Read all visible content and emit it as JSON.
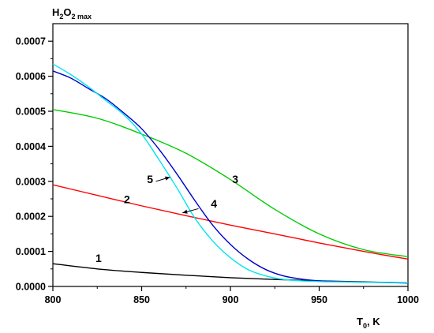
{
  "chart_data": {
    "type": "line",
    "title": "",
    "xlabel": {
      "main": "T",
      "sub": "0",
      "tail": ", K"
    },
    "ylabel": {
      "p1": "H",
      "s1": "2",
      "p2": "O",
      "s2": "2 max"
    },
    "xlim": [
      800,
      1000
    ],
    "ylim": [
      0,
      0.00075
    ],
    "xticks": [
      800,
      850,
      900,
      950,
      1000
    ],
    "xtick_labels": [
      "800",
      "850",
      "900",
      "950",
      "1000"
    ],
    "yticks": [
      0,
      0.0001,
      0.0002,
      0.0003,
      0.0004,
      0.0005,
      0.0006,
      0.0007
    ],
    "ytick_labels": [
      "0.0000",
      "0.0001",
      "0.0002",
      "0.0003",
      "0.0004",
      "0.0005",
      "0.0006",
      "0.0007"
    ],
    "grid": false,
    "series": [
      {
        "name": "1",
        "color": "#000000",
        "x": [
          800,
          825,
          850,
          875,
          900,
          925,
          950,
          975,
          1000
        ],
        "y": [
          6.5e-05,
          5e-05,
          4e-05,
          3.2e-05,
          2.5e-05,
          2e-05,
          1.6e-05,
          1.3e-05,
          1e-05
        ]
      },
      {
        "name": "2",
        "color": "#ff0000",
        "x": [
          800,
          825,
          850,
          875,
          900,
          925,
          950,
          975,
          1000
        ],
        "y": [
          0.00029,
          0.00026,
          0.00023,
          0.000202,
          0.000175,
          0.00015,
          0.000124,
          0.0001,
          7.8e-05
        ]
      },
      {
        "name": "3",
        "color": "#00cc00",
        "x": [
          800,
          825,
          850,
          875,
          900,
          925,
          950,
          975,
          1000
        ],
        "y": [
          0.000505,
          0.00048,
          0.000435,
          0.00038,
          0.000305,
          0.00022,
          0.00015,
          0.000105,
          8.5e-05
        ]
      },
      {
        "name": "4",
        "color": "#0000cc",
        "x": [
          800,
          810,
          820,
          830,
          840,
          850,
          860,
          870,
          880,
          890,
          900,
          910,
          920,
          930,
          940,
          950,
          960,
          975,
          1000
        ],
        "y": [
          0.000615,
          0.000595,
          0.000565,
          0.000535,
          0.000495,
          0.00045,
          0.00039,
          0.00032,
          0.000245,
          0.000175,
          0.00012,
          7.8e-05,
          4.8e-05,
          3e-05,
          2.1e-05,
          1.6e-05,
          1.4e-05,
          1.2e-05,
          1e-05
        ]
      },
      {
        "name": "5",
        "color": "#00e5ee",
        "x": [
          800,
          810,
          820,
          830,
          840,
          850,
          860,
          870,
          880,
          890,
          900,
          910,
          920,
          930,
          940,
          950,
          960,
          975,
          1000
        ],
        "y": [
          0.000635,
          0.000605,
          0.00057,
          0.00053,
          0.00049,
          0.000435,
          0.00036,
          0.00028,
          0.000195,
          0.00013,
          8.2e-05,
          4.8e-05,
          3e-05,
          2e-05,
          1.6e-05,
          1.4e-05,
          1.3e-05,
          1.2e-05,
          1.1e-05
        ]
      }
    ],
    "series_labels": [
      {
        "text": "1",
        "x": 824,
        "y": 7e-05,
        "arrow": false
      },
      {
        "text": "2",
        "x": 840,
        "y": 0.000238,
        "arrow": false
      },
      {
        "text": "3",
        "x": 901,
        "y": 0.000295,
        "arrow": false
      },
      {
        "text": "4",
        "x": 889,
        "y": 0.000225,
        "arrow": true,
        "ax1": 882,
        "ay1": 0.000222,
        "ax2": 873,
        "ay2": 0.00021
      },
      {
        "text": "5",
        "x": 853,
        "y": 0.000295,
        "arrow": true,
        "ax1": 858,
        "ay1": 0.0003,
        "ax2": 866,
        "ay2": 0.000312
      }
    ]
  }
}
